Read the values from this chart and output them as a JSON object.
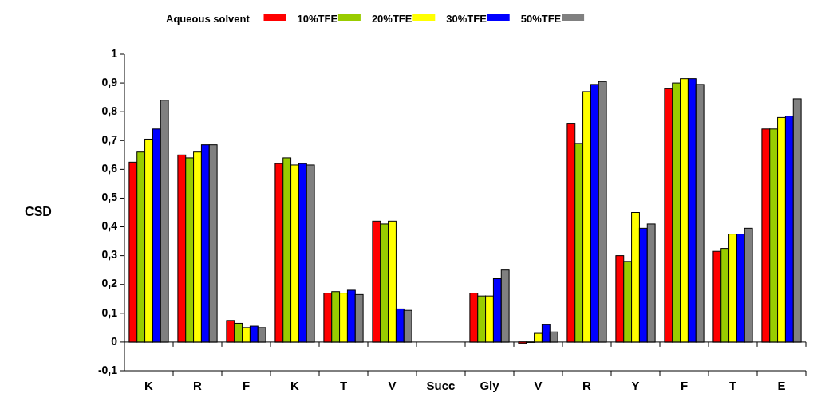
{
  "chart_data": {
    "type": "bar",
    "ylabel": "CSD",
    "categories": [
      "K",
      "R",
      "F",
      "K",
      "T",
      "V",
      "Succ",
      "Gly",
      "V",
      "R",
      "Y",
      "F",
      "T",
      "E"
    ],
    "series": [
      {
        "name": "Aqueous solvent",
        "color": "#ff0000",
        "values": [
          0.625,
          0.65,
          0.075,
          0.62,
          0.17,
          0.42,
          null,
          0.17,
          -0.005,
          0.76,
          0.3,
          0.88,
          0.315,
          0.74
        ]
      },
      {
        "name": "10%TFE",
        "color": "#99cc00",
        "values": [
          0.66,
          0.64,
          0.065,
          0.64,
          0.175,
          0.41,
          null,
          0.16,
          0,
          0.69,
          0.28,
          0.9,
          0.325,
          0.74
        ]
      },
      {
        "name": "20%TFE",
        "color": "#ffff00",
        "values": [
          0.705,
          0.66,
          0.05,
          0.615,
          0.17,
          0.42,
          null,
          0.16,
          0.03,
          0.87,
          0.45,
          0.915,
          0.375,
          0.78
        ]
      },
      {
        "name": "30%TFE",
        "color": "#0000ff",
        "values": [
          0.74,
          0.685,
          0.055,
          0.62,
          0.18,
          0.115,
          null,
          0.22,
          0.06,
          0.895,
          0.395,
          0.915,
          0.375,
          0.785
        ]
      },
      {
        "name": "50%TFE",
        "color": "#808080",
        "values": [
          0.84,
          0.685,
          0.05,
          0.615,
          0.165,
          0.11,
          null,
          0.25,
          0.035,
          0.905,
          0.41,
          0.895,
          0.395,
          0.845
        ]
      }
    ],
    "ylim": [
      -0.1,
      1
    ],
    "yticks": [
      {
        "value": -0.1,
        "label": "-0,1"
      },
      0,
      {
        "value": 0.1,
        "label": "0,1"
      },
      {
        "value": 0.2,
        "label": "0,2"
      },
      {
        "value": 0.3,
        "label": "0,3"
      },
      {
        "value": 0.4,
        "label": "0,4"
      },
      {
        "value": 0.5,
        "label": "0,5"
      },
      {
        "value": 0.6,
        "label": "0,6"
      },
      {
        "value": 0.7,
        "label": "0,7"
      },
      {
        "value": 0.8,
        "label": "0,8"
      },
      {
        "value": 0.9,
        "label": "0,9"
      },
      1
    ],
    "legend": "top"
  }
}
